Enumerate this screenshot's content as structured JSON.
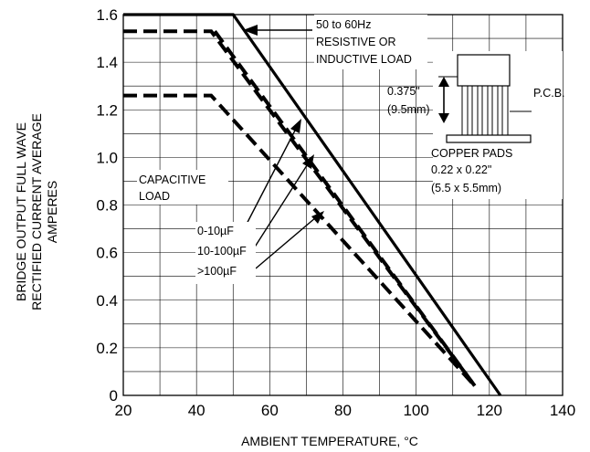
{
  "chart_data": {
    "type": "line",
    "xlabel": "AMBIENT TEMPERATURE, °C",
    "ylabel_lines": [
      "BRIDGE OUTPUT FULL WAVE",
      "RECTIFIED CURRENT AVERAGE",
      "AMPERES"
    ],
    "xlim": [
      20,
      140
    ],
    "ylim": [
      0,
      1.6
    ],
    "x_ticks": [
      20,
      40,
      60,
      80,
      100,
      120,
      140
    ],
    "y_ticks": [
      0,
      0.2,
      0.4,
      0.6,
      0.8,
      1.0,
      1.2,
      1.4,
      1.6
    ],
    "x_tick_labels": [
      "20",
      "40",
      "60",
      "80",
      "100",
      "120",
      "140"
    ],
    "y_tick_labels": [
      "0",
      "0.2",
      "0.4",
      "0.6",
      "0.8",
      "1.0",
      "1.2",
      "1.4",
      "1.6"
    ],
    "grid": true,
    "series": [
      {
        "name": "50 to 60Hz RESISTIVE OR INDUCTIVE LOAD",
        "style": "solid",
        "x": [
          20,
          50,
          123
        ],
        "y": [
          1.6,
          1.6,
          0
        ]
      },
      {
        "name": "0-10µF",
        "style": "dashed",
        "x": [
          20,
          44,
          116
        ],
        "y": [
          1.53,
          1.53,
          0.04
        ]
      },
      {
        "name": "10-100µF",
        "style": "dashed",
        "x": [
          45,
          116
        ],
        "y": [
          1.53,
          0.04
        ]
      },
      {
        "name": ">100µF",
        "style": "dashed",
        "x": [
          20,
          44,
          116
        ],
        "y": [
          1.26,
          1.26,
          0.04
        ]
      }
    ],
    "annotations": {
      "resistive_lines": [
        "50 to 60Hz",
        "RESISTIVE OR",
        "INDUCTIVE LOAD"
      ],
      "capacitive_lines": [
        "CAPACITIVE",
        "LOAD"
      ],
      "cap_values": [
        "0-10µF",
        "10-100µF",
        ">100µF"
      ],
      "dimension_lines": [
        "0.375\"",
        "(9.5mm)"
      ],
      "pcb_label": "P.C.B.",
      "pads_lines": [
        "COPPER PADS",
        "0.22 x 0.22\"",
        "(5.5 x 5.5mm)"
      ]
    }
  }
}
